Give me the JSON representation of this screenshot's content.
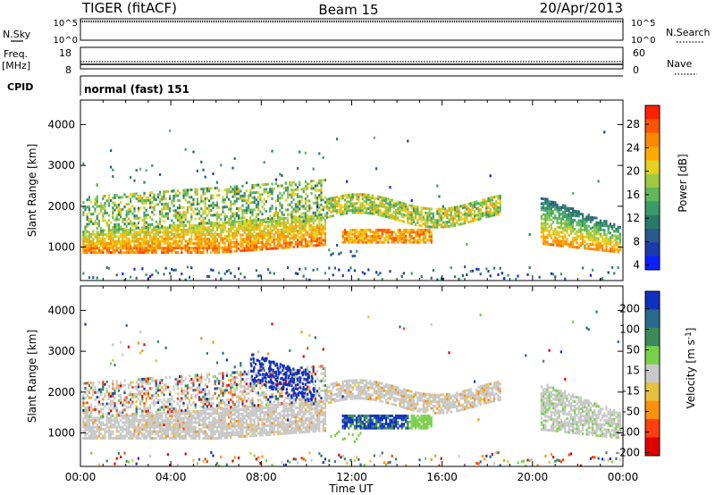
{
  "header": {
    "station": "TIGER (fitACF)",
    "beam": "Beam 15",
    "date": "20/Apr/2013"
  },
  "strips": {
    "nsky": {
      "label": "N.Sky",
      "ticks": [
        "10^5",
        "10^0"
      ],
      "right_label": "N.Search",
      "right_ticks": [
        "10^5",
        "10^0"
      ]
    },
    "freq": {
      "label_top": "Freq.",
      "label_bottom": "[MHz]",
      "ticks": [
        "18",
        "8"
      ],
      "right_label": "Nave",
      "right_ticks": [
        "60",
        "0"
      ]
    },
    "cpid": {
      "label": "CPID",
      "value": "normal (fast) 151"
    }
  },
  "x_axis": {
    "label": "Time UT",
    "ticks": [
      "00:00",
      "04:00",
      "08:00",
      "12:00",
      "16:00",
      "20:00",
      "00:00"
    ]
  },
  "chart_data": [
    {
      "type": "heatmap",
      "title": "",
      "quantity": "Power",
      "xlabel": "Time UT",
      "ylabel": "Slant Range [km]",
      "xlim_hours": [
        0,
        24
      ],
      "ylim_km": [
        180,
        4600
      ],
      "yticks": [
        1000,
        2000,
        3000,
        4000
      ],
      "colorbar": {
        "label": "Power [dB]",
        "ticks": [
          "28",
          "24",
          "20",
          "16",
          "12",
          "8",
          "4"
        ],
        "colors": [
          "#ff2200",
          "#ff5500",
          "#ff8800",
          "#ffaa00",
          "#e6d020",
          "#a0c840",
          "#5fb85a",
          "#3a9a6a",
          "#2a7a6a",
          "#2a5a8a",
          "#1a3aaa",
          "#0a20ff"
        ]
      },
      "features": [
        {
          "name": "main band",
          "t_start": 0,
          "t_end": 10.8,
          "range_start_km": 950,
          "range_end_km": 1450
        },
        {
          "name": "rising arc",
          "t_start": 9.5,
          "t_end": 18.5,
          "range_start_km": 1800,
          "range_end_km": 2300
        },
        {
          "name": "midday patch",
          "t_start": 11.5,
          "t_end": 15.5,
          "range_start_km": 1200,
          "range_end_km": 1450
        },
        {
          "name": "evening band",
          "t_start": 20.5,
          "t_end": 24,
          "range_start_km": 900,
          "range_end_km": 2100
        }
      ]
    },
    {
      "type": "heatmap",
      "title": "",
      "quantity": "Velocity",
      "xlabel": "Time UT",
      "ylabel": "Slant Range [km]",
      "xlim_hours": [
        0,
        24
      ],
      "ylim_km": [
        180,
        4600
      ],
      "yticks": [
        1000,
        2000,
        3000,
        4000
      ],
      "colorbar": {
        "label": "Velocity [m s^-1]",
        "ticks": [
          "200",
          "100",
          "50",
          "15",
          "-15",
          "-50",
          "-100",
          "-200"
        ],
        "colors": [
          "#1030c0",
          "#2a6a8a",
          "#3a8a5a",
          "#7ad04a",
          "#c8c8c8",
          "#e8c040",
          "#ff9010",
          "#ff4010",
          "#e00000"
        ]
      },
      "features": [
        {
          "name": "ground scatter band",
          "t_start": 0,
          "t_end": 24,
          "range_start_km": 800,
          "range_end_km": 2200
        },
        {
          "name": "blue patch",
          "t_start": 11.8,
          "t_end": 14.5,
          "range_start_km": 1150,
          "range_end_km": 1500
        },
        {
          "name": "blue arc",
          "t_start": 7.5,
          "t_end": 10,
          "range_start_km": 2300,
          "range_end_km": 3200
        }
      ]
    }
  ]
}
